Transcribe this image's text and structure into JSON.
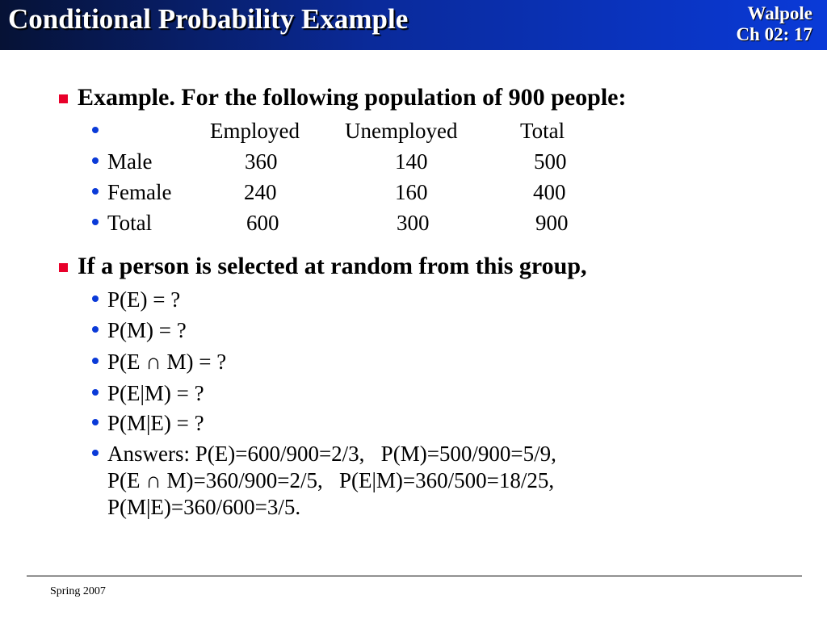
{
  "header": {
    "title": "Conditional Probability Example",
    "ref_line1": "Walpole",
    "ref_line2": "Ch 02:  17"
  },
  "section1": {
    "heading": "Example. For the following population of 900 people:",
    "columns": [
      "Employed",
      "Unemployed",
      "Total"
    ],
    "rows": [
      {
        "label": "Male",
        "values": [
          "360",
          "140",
          "500"
        ]
      },
      {
        "label": "Female",
        "values": [
          "240",
          "160",
          "400"
        ]
      },
      {
        "label": "Total",
        "values": [
          "600",
          "300",
          "900"
        ]
      }
    ]
  },
  "section2": {
    "heading": "If a person is selected at random from this group,",
    "items": [
      "P(E)  =  ?",
      "P(M)  =  ?",
      "P(E ∩ M)  =  ?",
      "P(E|M)  =  ?",
      "P(M|E)  =  ?"
    ],
    "answers": [
      "Answers: P(E)=600/900=2/3,   P(M)=500/900=5/9,",
      "P(E ∩ M)=360/900=2/5,   P(E|M)=360/500=18/25,",
      "P(M|E)=360/600=3/5."
    ]
  },
  "footer": {
    "text": "Spring 2007"
  },
  "colors": {
    "square_bullet": "#e8002a",
    "dot_bullet": "#0a3ad8"
  }
}
